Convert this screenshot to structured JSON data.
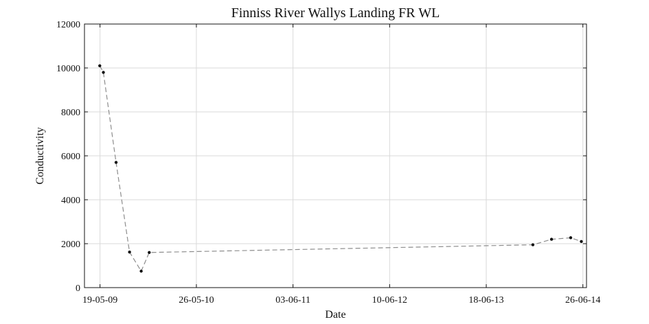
{
  "chart_data": {
    "type": "line",
    "title": "Finniss River Wallys Landing FR WL",
    "xlabel": "Date",
    "ylabel": "Conductivity",
    "ylim": [
      0,
      12000
    ],
    "yticks": [
      0,
      2000,
      4000,
      6000,
      8000,
      10000,
      12000
    ],
    "xlim": [
      "2009-03-20",
      "2014-07-10"
    ],
    "xticks": [
      {
        "date": "2009-05-19",
        "label": "19-05-09"
      },
      {
        "date": "2010-05-26",
        "label": "26-05-10"
      },
      {
        "date": "2011-06-03",
        "label": "03-06-11"
      },
      {
        "date": "2012-06-10",
        "label": "10-06-12"
      },
      {
        "date": "2013-06-18",
        "label": "18-06-13"
      },
      {
        "date": "2014-06-26",
        "label": "26-06-14"
      }
    ],
    "grid": true,
    "series": [
      {
        "points": [
          {
            "x": "2009-05-18",
            "y": 10100
          },
          {
            "x": "2009-06-01",
            "y": 9800
          },
          {
            "x": "2009-07-20",
            "y": 5700
          },
          {
            "x": "2009-09-10",
            "y": 1620
          },
          {
            "x": "2009-10-25",
            "y": 750
          },
          {
            "x": "2009-11-25",
            "y": 1600
          },
          {
            "x": "2013-12-15",
            "y": 1950
          },
          {
            "x": "2014-02-25",
            "y": 2200
          },
          {
            "x": "2014-05-10",
            "y": 2270
          },
          {
            "x": "2014-06-20",
            "y": 2100
          }
        ]
      }
    ]
  }
}
